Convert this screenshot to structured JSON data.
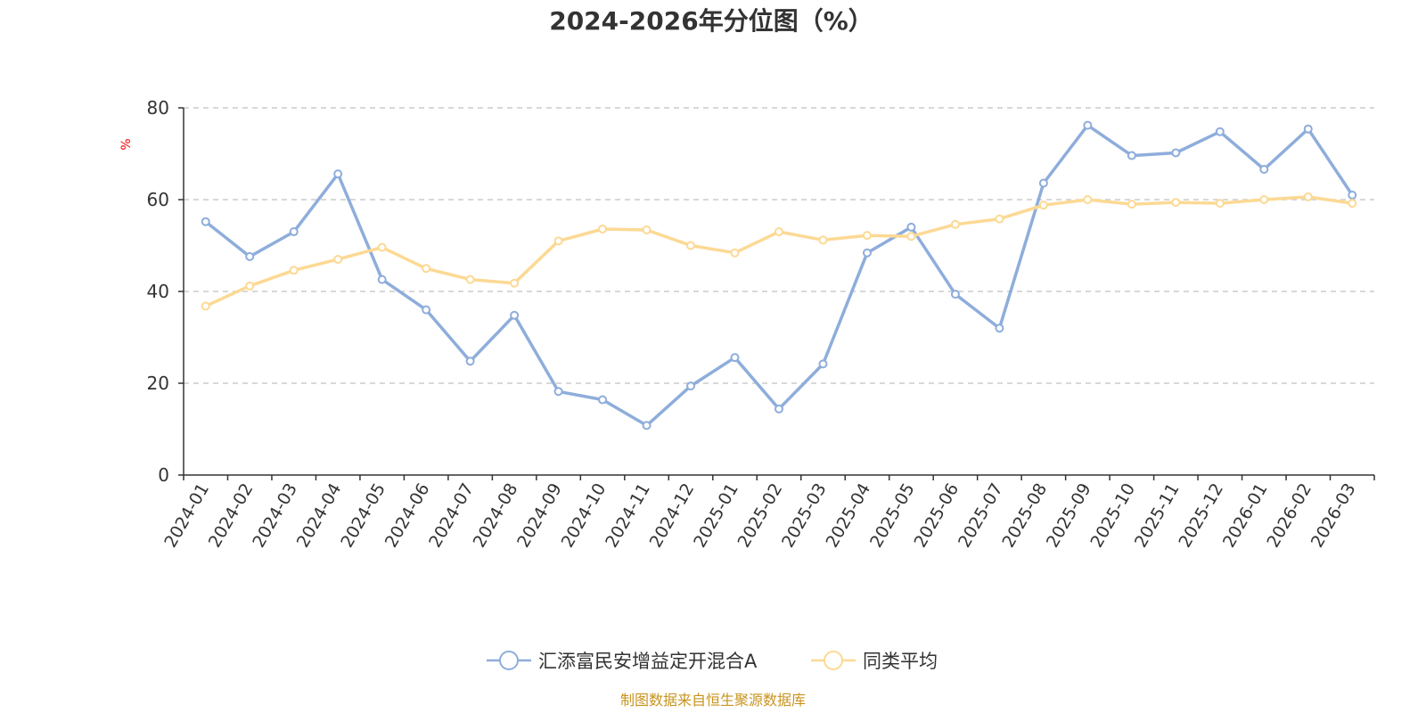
{
  "chart_data": {
    "type": "line",
    "title": "2024-2026年分位图（%）",
    "xlabel": "",
    "ylabel": "%",
    "ylim": [
      0,
      80
    ],
    "yticks": [
      0,
      20,
      40,
      60,
      80
    ],
    "grid": "horizontal dashed",
    "legend_position": "bottom-center",
    "categories": [
      "2024-01",
      "2024-02",
      "2024-03",
      "2024-04",
      "2024-05",
      "2024-06",
      "2024-07",
      "2024-08",
      "2024-09",
      "2024-10",
      "2024-11",
      "2024-12",
      "2025-01",
      "2025-02",
      "2025-03",
      "2025-04",
      "2025-05",
      "2025-06",
      "2025-07",
      "2025-08",
      "2025-09",
      "2025-10",
      "2025-11",
      "2025-12",
      "2026-01",
      "2026-02",
      "2026-03"
    ],
    "series": [
      {
        "name": "汇添富民安增益定开混合A",
        "color": "#8eaddb",
        "values": [
          55.2,
          47.6,
          53.0,
          65.6,
          42.6,
          36.0,
          24.8,
          34.8,
          18.2,
          16.4,
          10.8,
          19.4,
          25.6,
          14.4,
          24.2,
          48.4,
          54.0,
          39.4,
          32.0,
          63.6,
          76.2,
          69.6,
          70.2,
          74.8,
          66.6,
          75.4,
          61.0
        ]
      },
      {
        "name": "同类平均",
        "color": "#fcd994",
        "values": [
          36.8,
          41.2,
          44.6,
          47.0,
          49.6,
          45.0,
          42.6,
          41.8,
          51.0,
          53.6,
          53.4,
          50.0,
          48.4,
          53.0,
          51.2,
          52.2,
          52.0,
          54.6,
          55.8,
          58.8,
          60.0,
          59.0,
          59.4,
          59.2,
          60.0,
          60.6,
          59.2
        ]
      }
    ]
  },
  "source_note": "制图数据来自恒生聚源数据库"
}
